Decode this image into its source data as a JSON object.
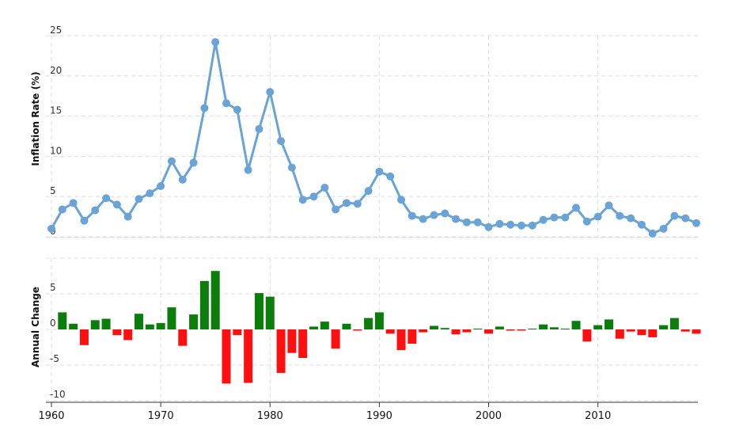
{
  "chart_data": [
    {
      "type": "line",
      "ylabel": "Inflation Rate (%)",
      "ylim": [
        0,
        25
      ],
      "yticks": [
        0,
        5,
        10,
        15,
        20,
        25
      ],
      "xlim": [
        1960,
        2019
      ],
      "grid": true,
      "color": "#6aa3d5",
      "x": [
        1960,
        1961,
        1962,
        1963,
        1964,
        1965,
        1966,
        1967,
        1968,
        1969,
        1970,
        1971,
        1972,
        1973,
        1974,
        1975,
        1976,
        1977,
        1978,
        1979,
        1980,
        1981,
        1982,
        1983,
        1984,
        1985,
        1986,
        1987,
        1988,
        1989,
        1990,
        1991,
        1992,
        1993,
        1994,
        1995,
        1996,
        1997,
        1998,
        1999,
        2000,
        2001,
        2002,
        2003,
        2004,
        2005,
        2006,
        2007,
        2008,
        2009,
        2010,
        2011,
        2012,
        2013,
        2014,
        2015,
        2016,
        2017,
        2018,
        2019
      ],
      "values": [
        1.0,
        3.4,
        4.2,
        2.0,
        3.3,
        4.8,
        4.0,
        2.5,
        4.7,
        5.4,
        6.3,
        9.4,
        7.1,
        9.2,
        16.0,
        24.2,
        16.6,
        15.8,
        8.3,
        13.4,
        18.0,
        11.9,
        8.6,
        4.6,
        5.0,
        6.1,
        3.4,
        4.2,
        4.1,
        5.7,
        8.1,
        7.5,
        4.6,
        2.6,
        2.2,
        2.7,
        2.9,
        2.2,
        1.8,
        1.8,
        1.2,
        1.6,
        1.5,
        1.4,
        1.4,
        2.1,
        2.4,
        2.4,
        3.6,
        1.9,
        2.5,
        3.9,
        2.6,
        2.3,
        1.5,
        0.4,
        1.0,
        2.6,
        2.3,
        1.7
      ]
    },
    {
      "type": "bar",
      "ylabel": "Annual Change",
      "ylim": [
        -10,
        10
      ],
      "yticks": [
        -10,
        -5,
        0,
        5
      ],
      "grid": true,
      "positive_color": "#0a7d0a",
      "negative_color": "#ff1010",
      "x": [
        1961,
        1962,
        1963,
        1964,
        1965,
        1966,
        1967,
        1968,
        1969,
        1970,
        1971,
        1972,
        1973,
        1974,
        1975,
        1976,
        1977,
        1978,
        1979,
        1980,
        1981,
        1982,
        1983,
        1984,
        1985,
        1986,
        1987,
        1988,
        1989,
        1990,
        1991,
        1992,
        1993,
        1994,
        1995,
        1996,
        1997,
        1998,
        1999,
        2000,
        2001,
        2002,
        2003,
        2004,
        2005,
        2006,
        2007,
        2008,
        2009,
        2010,
        2011,
        2012,
        2013,
        2014,
        2015,
        2016,
        2017,
        2018,
        2019
      ],
      "values": [
        2.4,
        0.8,
        -2.2,
        1.3,
        1.5,
        -0.8,
        -1.5,
        2.2,
        0.7,
        0.9,
        3.1,
        -2.3,
        2.1,
        6.8,
        8.2,
        -7.6,
        -0.8,
        -7.5,
        5.1,
        4.6,
        -6.1,
        -3.3,
        -4.0,
        0.4,
        1.1,
        -2.7,
        0.8,
        -0.1,
        1.6,
        2.4,
        -0.6,
        -2.9,
        -2.0,
        -0.4,
        0.5,
        0.2,
        -0.7,
        -0.4,
        0.0,
        -0.6,
        0.4,
        -0.1,
        -0.1,
        0.0,
        0.7,
        0.3,
        0.0,
        1.2,
        -1.7,
        0.6,
        1.4,
        -1.3,
        -0.3,
        -0.8,
        -1.1,
        0.6,
        1.6,
        -0.3,
        -0.6
      ]
    }
  ],
  "x_axis": {
    "ticks": [
      1960,
      1970,
      1980,
      1990,
      2000,
      2010
    ]
  }
}
